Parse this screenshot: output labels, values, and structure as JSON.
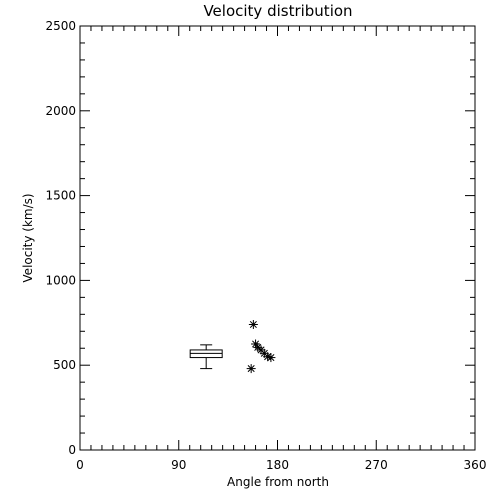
{
  "chart_data": {
    "type": "scatter",
    "title": "Velocity distribution",
    "xlabel": "Angle from north",
    "ylabel": "Velocity (km/s)",
    "xlim": [
      0,
      360
    ],
    "ylim": [
      0,
      2500
    ],
    "x_ticks": [
      0,
      90,
      180,
      270,
      360
    ],
    "y_ticks": [
      0,
      500,
      1000,
      1500,
      2000,
      2500
    ],
    "x_tick_labels": [
      "0",
      "90",
      "180",
      "270",
      "360"
    ],
    "y_tick_labels": [
      "0",
      "500",
      "1000",
      "1500",
      "2000",
      "2500"
    ],
    "grid": false,
    "boxplot": {
      "x": 115,
      "whisker_low": 480,
      "q1": 545,
      "median": 570,
      "q3": 590,
      "whisker_high": 620
    },
    "points": [
      {
        "x": 158,
        "y": 740
      },
      {
        "x": 160,
        "y": 625
      },
      {
        "x": 162,
        "y": 605
      },
      {
        "x": 165,
        "y": 590
      },
      {
        "x": 168,
        "y": 570
      },
      {
        "x": 171,
        "y": 550
      },
      {
        "x": 174,
        "y": 545
      },
      {
        "x": 156,
        "y": 480
      }
    ],
    "marker": "asterisk",
    "color": "#000000"
  }
}
